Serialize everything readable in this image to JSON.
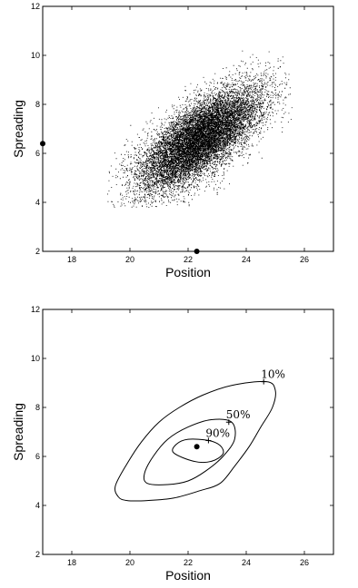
{
  "chart_data": [
    {
      "type": "scatter",
      "title": "",
      "xlabel": "Position",
      "ylabel": "Spreading",
      "xlim": [
        17,
        27
      ],
      "ylim": [
        2,
        12
      ],
      "xticks": [
        "18",
        "20",
        "22",
        "24",
        "26"
      ],
      "yticks": [
        "2",
        "4",
        "6",
        "8",
        "10",
        "12"
      ],
      "grid": false,
      "point_cloud": {
        "n_points_approx": 12000,
        "mean": [
          22.4,
          6.6
        ],
        "std": [
          1.05,
          1.05
        ],
        "correlation": 0.7,
        "x_range": [
          19.2,
          25.6
        ],
        "y_range": [
          3.8,
          10.2
        ]
      },
      "marginal_markers": [
        {
          "x": 17,
          "y": 6.4
        },
        {
          "x": 22.3,
          "y": 2
        }
      ]
    },
    {
      "type": "contour",
      "title": "",
      "xlabel": "Position",
      "ylabel": "Spreading",
      "xlim": [
        17,
        27
      ],
      "ylim": [
        2,
        12
      ],
      "xticks": [
        "18",
        "20",
        "22",
        "24",
        "26"
      ],
      "yticks": [
        "2",
        "4",
        "6",
        "8",
        "10",
        "12"
      ],
      "grid": false,
      "levels": [
        {
          "label": "10%",
          "label_point": [
            24.6,
            9.05
          ],
          "path": [
            [
              19.9,
              4.2
            ],
            [
              20.6,
              4.2
            ],
            [
              21.5,
              4.3
            ],
            [
              22.4,
              4.6
            ],
            [
              23.1,
              4.9
            ],
            [
              23.6,
              5.6
            ],
            [
              24.1,
              6.4
            ],
            [
              24.5,
              7.2
            ],
            [
              24.9,
              8.0
            ],
            [
              25.0,
              8.7
            ],
            [
              24.7,
              9.05
            ],
            [
              23.5,
              8.9
            ],
            [
              22.5,
              8.5
            ],
            [
              21.7,
              8.0
            ],
            [
              21.0,
              7.4
            ],
            [
              20.4,
              6.6
            ],
            [
              19.9,
              5.7
            ],
            [
              19.5,
              4.8
            ],
            [
              19.6,
              4.35
            ],
            [
              19.9,
              4.2
            ]
          ]
        },
        {
          "label": "50%",
          "label_point": [
            23.4,
            7.4
          ],
          "path": [
            [
              20.6,
              4.9
            ],
            [
              21.3,
              4.85
            ],
            [
              22.0,
              5.0
            ],
            [
              22.6,
              5.4
            ],
            [
              23.2,
              6.0
            ],
            [
              23.6,
              6.7
            ],
            [
              23.5,
              7.4
            ],
            [
              22.8,
              7.5
            ],
            [
              22.0,
              7.2
            ],
            [
              21.3,
              6.7
            ],
            [
              20.8,
              6.0
            ],
            [
              20.5,
              5.3
            ],
            [
              20.6,
              4.9
            ]
          ]
        },
        {
          "label": "90%",
          "label_point": [
            22.7,
            6.65
          ],
          "path": [
            [
              21.5,
              6.15
            ],
            [
              22.2,
              5.8
            ],
            [
              22.8,
              5.8
            ],
            [
              23.2,
              6.1
            ],
            [
              23.1,
              6.45
            ],
            [
              22.7,
              6.65
            ],
            [
              22.0,
              6.7
            ],
            [
              21.6,
              6.5
            ],
            [
              21.5,
              6.15
            ]
          ]
        }
      ],
      "mode_point": {
        "x": 22.3,
        "y": 6.4
      }
    }
  ]
}
